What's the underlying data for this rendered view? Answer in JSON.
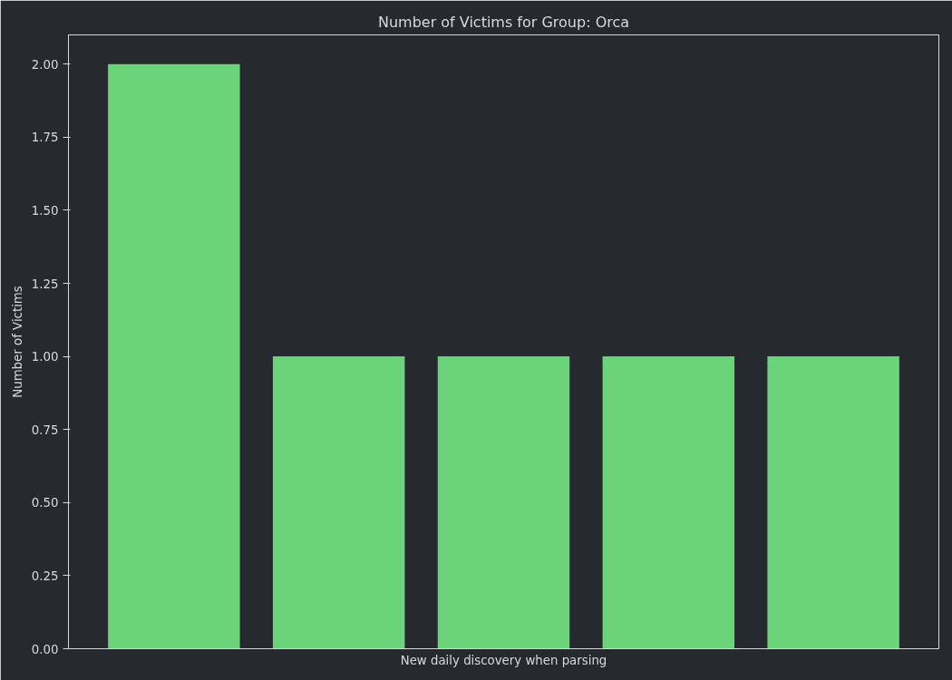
{
  "chart_data": {
    "type": "bar",
    "title": "Number of Victims for Group: Orca",
    "xlabel": "New daily discovery when parsing",
    "ylabel": "Number of Victims",
    "categories": [
      null,
      null,
      null,
      null,
      null
    ],
    "values": [
      2,
      1,
      1,
      1,
      1
    ],
    "color": "#6bd47b",
    "ylim": [
      0,
      2.1
    ],
    "yticks": [
      {
        "value": 0,
        "label": "0.00"
      },
      {
        "value": 0.25,
        "label": "0.25"
      },
      {
        "value": 0.5,
        "label": "0.50"
      },
      {
        "value": 0.75,
        "label": "0.75"
      },
      {
        "value": 1,
        "label": "1.00"
      },
      {
        "value": 1.25,
        "label": "1.25"
      },
      {
        "value": 1.5,
        "label": "1.50"
      },
      {
        "value": 1.75,
        "label": "1.75"
      },
      {
        "value": 2,
        "label": "2.00"
      }
    ],
    "grid": false,
    "tick_labels": "y"
  }
}
